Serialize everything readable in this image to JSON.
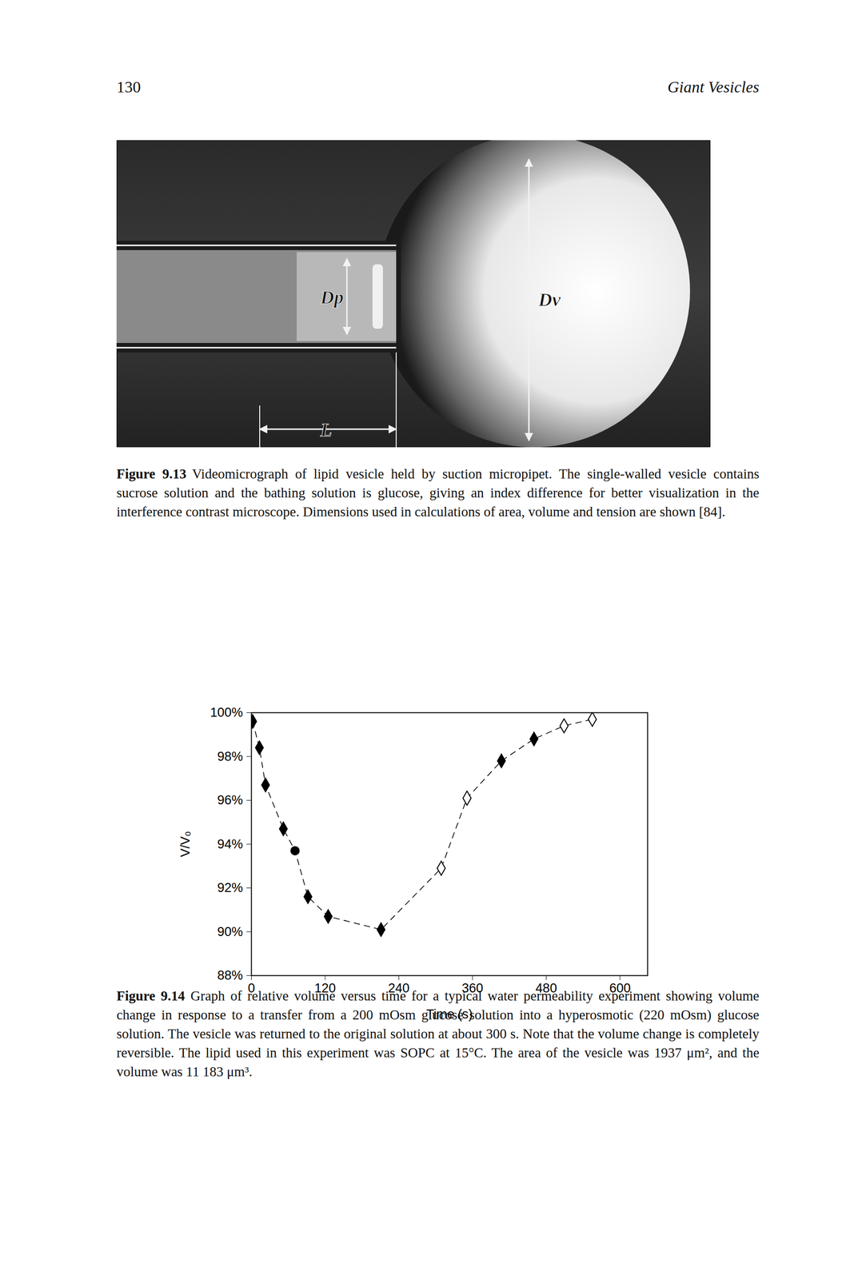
{
  "header": {
    "page": "130",
    "running_title": "Giant Vesicles"
  },
  "figure_9_13": {
    "label": "Figure 9.13",
    "labels": [
      "Dp",
      "Dv",
      "L"
    ],
    "caption": "Videomicrograph of lipid vesicle held by suction micropipet. The single-walled vesicle contains sucrose solution and the bathing solution is glucose, giving an index difference for better visualization in the interference contrast microscope. Dimensions used in calculations of area, volume and tension are shown [84]."
  },
  "chart_data": {
    "type": "scatter",
    "xlabel": "Time (s)",
    "ylabel": "V/V₀",
    "xlim": [
      0,
      645
    ],
    "xticks": [
      0,
      120,
      240,
      360,
      480,
      600
    ],
    "ylim": [
      88,
      100
    ],
    "yticks": [
      {
        "value": 88,
        "label": "88%"
      },
      {
        "value": 90,
        "label": "90%"
      },
      {
        "value": 92,
        "label": "92%"
      },
      {
        "value": 94,
        "label": "94%"
      },
      {
        "value": 96,
        "label": "96%"
      },
      {
        "value": 98,
        "label": "98%"
      },
      {
        "value": 100,
        "label": "100%"
      }
    ],
    "line_style": "dashed",
    "color": "#000000",
    "series": [
      {
        "marker": "diamond",
        "x": [
          2,
          13,
          23,
          52
        ],
        "values": [
          99.6,
          98.4,
          96.7,
          94.7
        ]
      },
      {
        "marker": "circle",
        "x": [
          71
        ],
        "values": [
          93.7
        ]
      },
      {
        "marker": "diamond",
        "x": [
          92,
          125,
          211
        ],
        "values": [
          91.6,
          90.7,
          90.1
        ]
      },
      {
        "marker": "diamond_open",
        "x": [
          309,
          351
        ],
        "values": [
          92.9,
          96.1
        ]
      },
      {
        "marker": "diamond",
        "x": [
          407,
          460
        ],
        "values": [
          97.8,
          98.8
        ]
      },
      {
        "marker": "diamond_open",
        "x": [
          509,
          555
        ],
        "values": [
          99.4,
          99.7
        ]
      }
    ]
  },
  "figure_9_14": {
    "label": "Figure 9.14",
    "caption": "Graph of relative volume versus time for a typical water permeability experiment showing volume change in response to a transfer from a 200 mOsm glucose solution into a hyperosmotic (220 mOsm) glucose solution. The vesicle was returned to the original solution at about 300 s. Note that the volume change is completely reversible. The lipid used in this experiment was SOPC at 15°C. The area of the vesicle was 1937 μm², and the volume was 11 183 μm³."
  }
}
